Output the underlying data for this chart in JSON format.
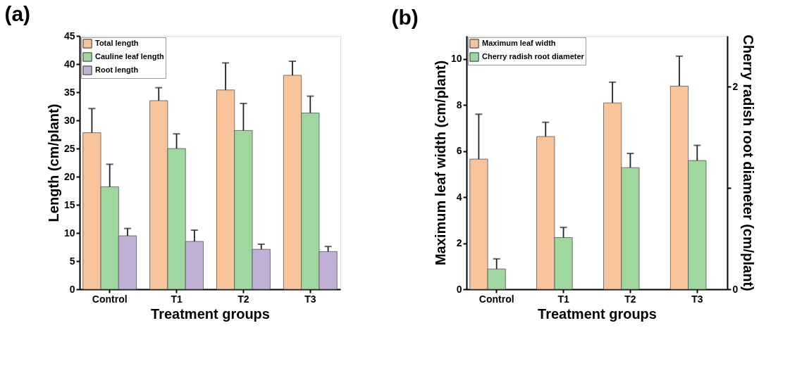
{
  "chart_data": [
    {
      "type": "bar",
      "title": "(a)",
      "xlabel": "Treatment groups",
      "ylabel": "Length (cm/plant)",
      "categories": [
        "Control",
        "T1",
        "T2",
        "T3"
      ],
      "ylim": [
        0,
        45
      ],
      "yticks": [
        0,
        5,
        10,
        15,
        20,
        25,
        30,
        35,
        40,
        45
      ],
      "legend": "top left",
      "grid": false,
      "series": [
        {
          "name": "Total length",
          "color": "#f9c49a",
          "values": [
            27.8,
            33.5,
            35.4,
            38.0
          ],
          "errors": [
            [
              27.8,
              32.1
            ],
            [
              33.5,
              35.8
            ],
            [
              35.4,
              40.2
            ],
            [
              38.0,
              40.5
            ]
          ]
        },
        {
          "name": "Cauline leaf length",
          "color": "#9fd89f",
          "values": [
            18.2,
            25.0,
            28.2,
            31.3
          ],
          "errors": [
            [
              18.2,
              22.2
            ],
            [
              25.0,
              27.6
            ],
            [
              28.2,
              33.0
            ],
            [
              31.3,
              34.3
            ]
          ]
        },
        {
          "name": "Root length",
          "color": "#c1b0d6",
          "values": [
            9.5,
            8.5,
            7.1,
            6.7
          ],
          "errors": [
            [
              9.5,
              10.8
            ],
            [
              8.5,
              10.5
            ],
            [
              7.1,
              8.0
            ],
            [
              6.7,
              7.6
            ]
          ]
        }
      ]
    },
    {
      "type": "bar",
      "title": "(b)",
      "xlabel": "Treatment groups",
      "ylabel": "Maximum leaf width (cm/plant)",
      "y2label": "Cherry radish root diameter (cm/plant)",
      "categories": [
        "Control",
        "T1",
        "T2",
        "T3"
      ],
      "ylim": [
        0,
        11
      ],
      "yticks": [
        0,
        2,
        4,
        6,
        8,
        10
      ],
      "y2lim": [
        0,
        2.5
      ],
      "y2ticks": [
        0,
        {
          "value": 1,
          "label": null
        },
        2
      ],
      "legend": "top left",
      "grid": false,
      "series": [
        {
          "name": "Maximum leaf width",
          "color": "#f9c49a",
          "values": [
            5.65,
            6.63,
            8.09,
            8.82
          ],
          "errors": [
            [
              5.65,
              7.6
            ],
            [
              6.63,
              7.25
            ],
            [
              8.09,
              8.99
            ],
            [
              8.82,
              10.12
            ]
          ]
        },
        {
          "name": "Cherry radish root diameter",
          "color": "#9fd89f",
          "axis": "y2",
          "values": [
            0.2,
            0.51,
            1.2,
            1.27
          ],
          "errors": [
            [
              0.2,
              0.3
            ],
            [
              0.51,
              0.61
            ],
            [
              1.2,
              1.34
            ],
            [
              1.27,
              1.42
            ]
          ]
        }
      ]
    }
  ]
}
